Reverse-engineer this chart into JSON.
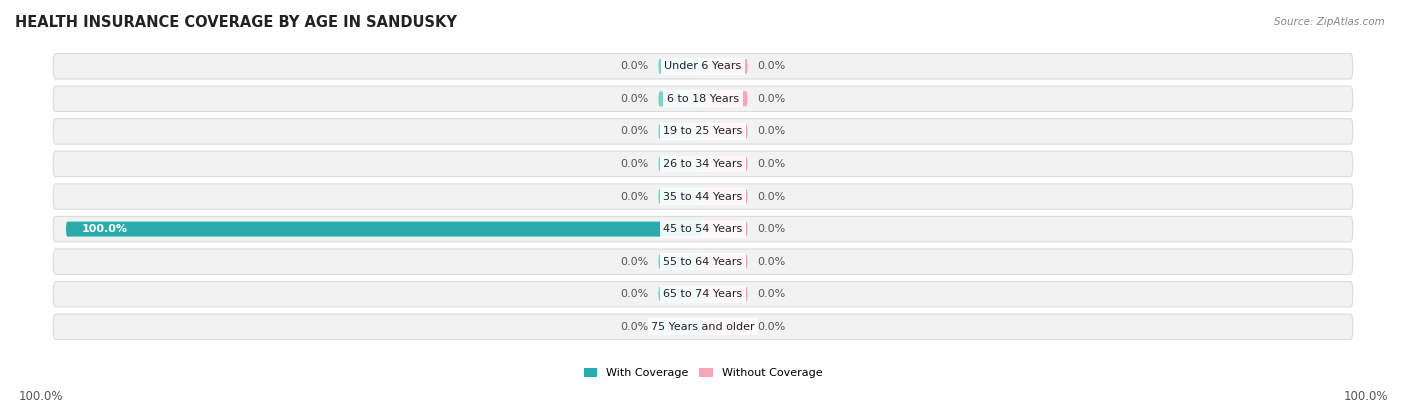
{
  "title": "HEALTH INSURANCE COVERAGE BY AGE IN SANDUSKY",
  "source": "Source: ZipAtlas.com",
  "categories": [
    "Under 6 Years",
    "6 to 18 Years",
    "19 to 25 Years",
    "26 to 34 Years",
    "35 to 44 Years",
    "45 to 54 Years",
    "55 to 64 Years",
    "65 to 74 Years",
    "75 Years and older"
  ],
  "with_coverage": [
    0.0,
    0.0,
    0.0,
    0.0,
    0.0,
    100.0,
    0.0,
    0.0,
    0.0
  ],
  "without_coverage": [
    0.0,
    0.0,
    0.0,
    0.0,
    0.0,
    0.0,
    0.0,
    0.0,
    0.0
  ],
  "color_with_stub": "#7ECFCF",
  "color_with_full": "#2AACAC",
  "color_without_stub": "#F4A7B9",
  "row_bg_color": "#f2f2f2",
  "row_border_color": "#dcdcdc",
  "legend_with": "With Coverage",
  "legend_without": "Without Coverage",
  "title_fontsize": 10.5,
  "label_fontsize": 8.0,
  "cat_fontsize": 8.0,
  "tick_fontsize": 8.5
}
